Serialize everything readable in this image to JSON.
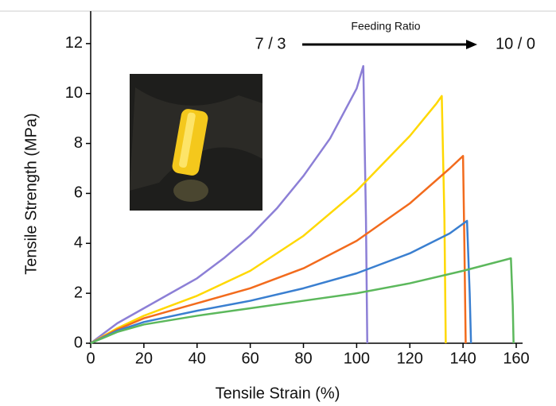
{
  "chart_data": {
    "type": "line",
    "x_label": "Tensile Strain (%)",
    "y_label": "Tensile Strength (MPa)",
    "annotations": [
      "7 / 3",
      "Feeding Ratio",
      "10 / 0"
    ],
    "xlim": [
      0,
      160
    ],
    "ylim": [
      0,
      13.3
    ],
    "xticks": [
      0,
      20,
      40,
      60,
      80,
      100,
      120,
      140,
      160
    ],
    "yticks": [
      0,
      2,
      4,
      6,
      8,
      10,
      12
    ],
    "series": [
      {
        "color": "#8c7fd6",
        "x": [
          0,
          5,
          10,
          20,
          30,
          40,
          50,
          60,
          70,
          80,
          90,
          100,
          102.5,
          103.5,
          104
        ],
        "values": [
          0,
          0.4,
          0.8,
          1.4,
          2.0,
          2.6,
          3.4,
          4.3,
          5.4,
          6.7,
          8.2,
          10.2,
          11.1,
          5,
          0
        ]
      },
      {
        "color": "#ffd800",
        "x": [
          0,
          10,
          20,
          40,
          60,
          80,
          100,
          120,
          130,
          132,
          133,
          133.5
        ],
        "values": [
          0,
          0.6,
          1.1,
          1.9,
          2.9,
          4.3,
          6.1,
          8.3,
          9.6,
          9.9,
          5,
          0
        ]
      },
      {
        "color": "#f26b1d",
        "x": [
          0,
          10,
          20,
          40,
          60,
          80,
          100,
          120,
          135,
          140,
          140.5,
          141
        ],
        "values": [
          0,
          0.55,
          1.0,
          1.6,
          2.2,
          3.0,
          4.1,
          5.6,
          7.0,
          7.5,
          4,
          0
        ]
      },
      {
        "color": "#3a7fd0",
        "x": [
          0,
          10,
          20,
          40,
          60,
          80,
          100,
          120,
          135,
          141.5,
          142.5,
          143
        ],
        "values": [
          0,
          0.5,
          0.85,
          1.3,
          1.7,
          2.2,
          2.8,
          3.6,
          4.4,
          4.9,
          2,
          0
        ]
      },
      {
        "color": "#5cb85c",
        "x": [
          0,
          10,
          20,
          40,
          60,
          80,
          100,
          120,
          140,
          158,
          158.7,
          159
        ],
        "values": [
          0,
          0.45,
          0.75,
          1.1,
          1.4,
          1.7,
          2.0,
          2.4,
          2.9,
          3.4,
          1.5,
          0
        ]
      }
    ]
  }
}
